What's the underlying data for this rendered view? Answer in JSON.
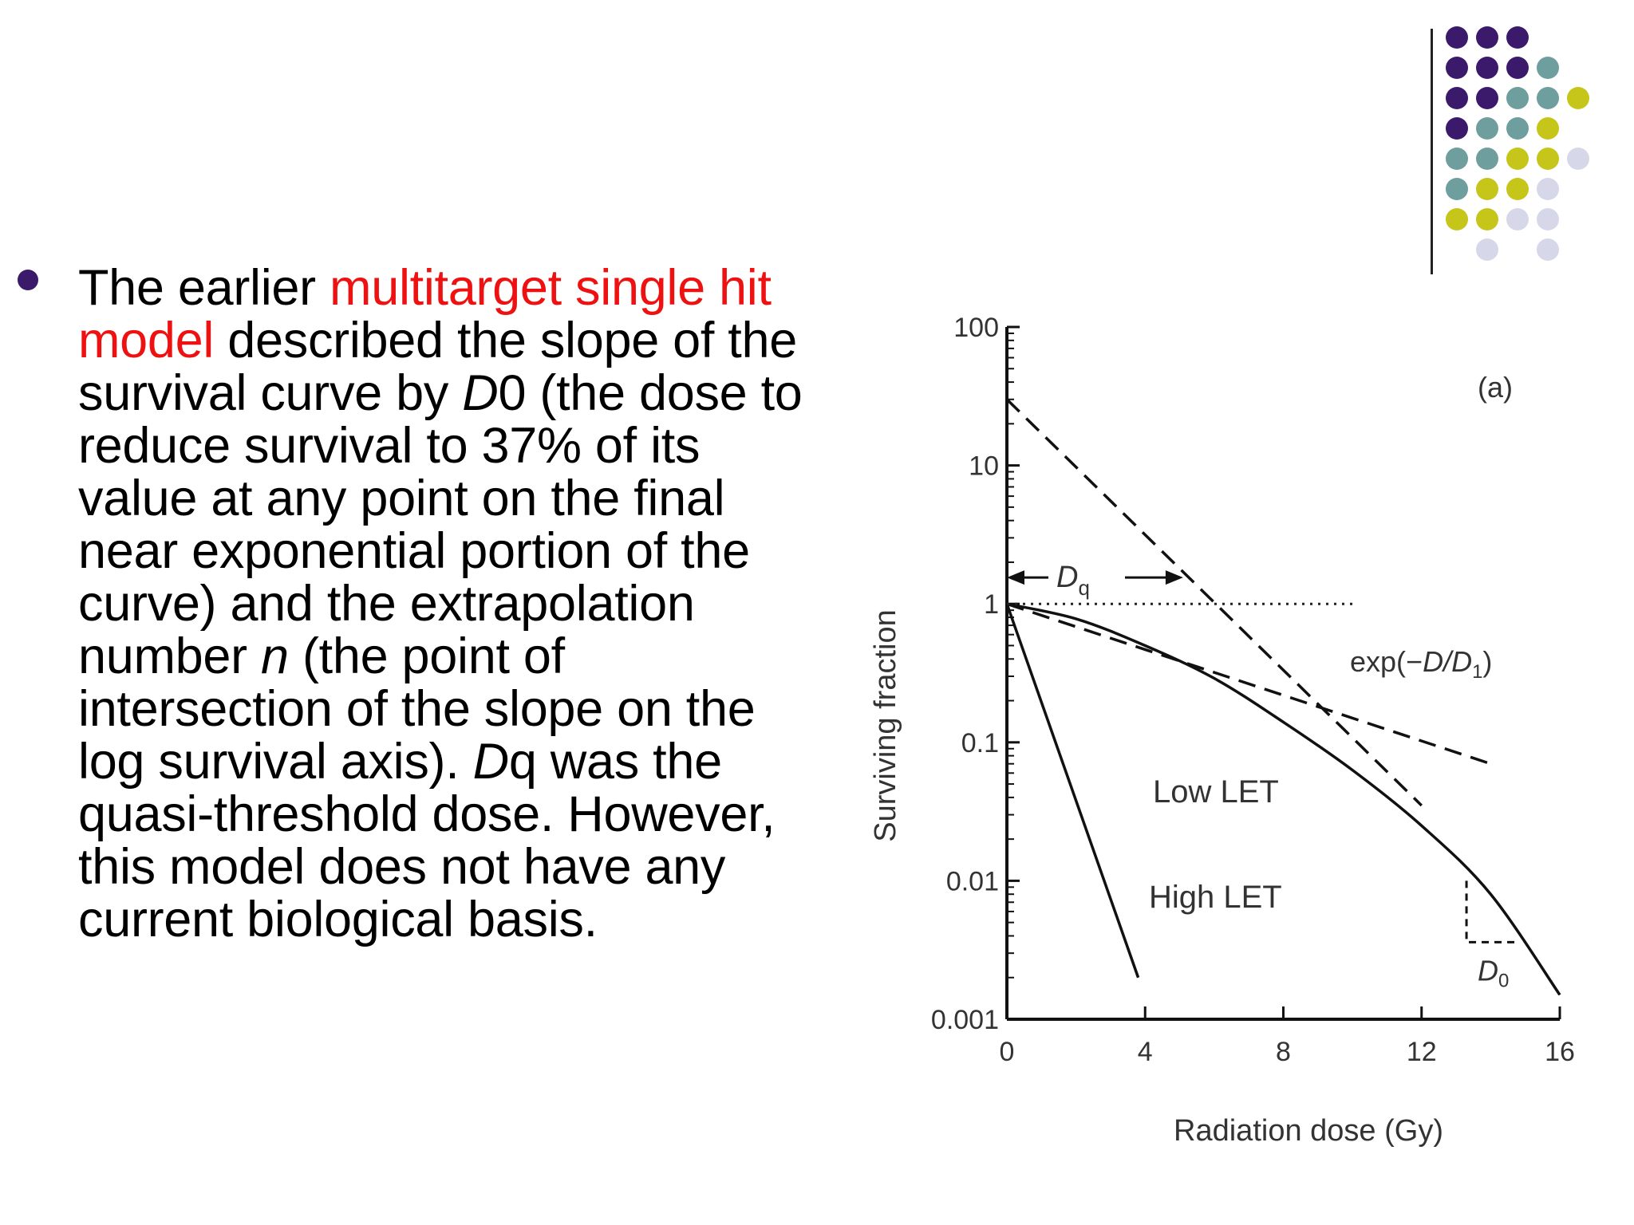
{
  "bullet": {
    "marker_color": "#3b1a6b",
    "segments": [
      {
        "text": "The earlier ",
        "style": "normal"
      },
      {
        "text": "multitarget single hit model",
        "style": "highlight"
      },
      {
        "text": " described the slope of the survival curve by ",
        "style": "normal"
      },
      {
        "text": "D",
        "style": "italic"
      },
      {
        "text": "0 (the dose to reduce survival to 37% of its value at any point on the final near exponential portion of the curve) and the extrapolation number ",
        "style": "normal"
      },
      {
        "text": "n",
        "style": "italic"
      },
      {
        "text": " (the point of intersection of the slope on the log survival axis). ",
        "style": "normal"
      },
      {
        "text": "D",
        "style": "italic"
      },
      {
        "text": "q was the quasi-threshold dose. However, this model does not have any current biological basis.",
        "style": "normal"
      }
    ],
    "highlight_color": "#ee1111"
  },
  "decoration": {
    "colors": {
      "purple": "#3b1a6b",
      "teal": "#6e9e9e",
      "lime": "#c6c61a",
      "lavender": "#d7d7ea"
    },
    "dot_rows": [
      [
        "purple",
        "purple",
        "purple",
        "",
        "",
        ""
      ],
      [
        "purple",
        "purple",
        "purple",
        "teal",
        "",
        ""
      ],
      [
        "purple",
        "purple",
        "teal",
        "teal",
        "lime",
        ""
      ],
      [
        "purple",
        "teal",
        "teal",
        "lime",
        "",
        ""
      ],
      [
        "teal",
        "teal",
        "lime",
        "lime",
        "lavender",
        ""
      ],
      [
        "teal",
        "lime",
        "lime",
        "lavender",
        "",
        ""
      ],
      [
        "lime",
        "lime",
        "lavender",
        "lavender",
        "",
        ""
      ],
      [
        "",
        "lavender",
        "",
        "lavender",
        "",
        ""
      ]
    ]
  },
  "chart_data": {
    "type": "line",
    "panel_label": "(a)",
    "xlabel": "Radiation dose (Gy)",
    "ylabel": "Surviving fraction",
    "xlim": [
      0,
      16
    ],
    "ylim": [
      0.001,
      100
    ],
    "yscale": "log",
    "x_ticks": [
      0,
      4,
      8,
      12,
      16
    ],
    "y_ticks": [
      0.001,
      0.01,
      0.1,
      1,
      10,
      100
    ],
    "x_tick_labels": [
      "0",
      "4",
      "8",
      "12",
      "16"
    ],
    "y_tick_labels": [
      "0.001",
      "0.01",
      "0.1",
      "1",
      "10",
      "100"
    ],
    "series": [
      {
        "name": "Low LET",
        "style": "solid",
        "x": [
          0,
          2,
          4,
          6,
          8,
          10,
          12,
          14,
          16
        ],
        "y": [
          1,
          0.78,
          0.5,
          0.29,
          0.14,
          0.063,
          0.025,
          0.008,
          0.0015
        ]
      },
      {
        "name": "High LET",
        "style": "solid",
        "x": [
          0,
          3.8
        ],
        "y": [
          1,
          0.002
        ]
      },
      {
        "name": "exp(−D/D1)",
        "style": "dashed",
        "x": [
          0,
          14
        ],
        "y": [
          1,
          0.07
        ]
      },
      {
        "name": "",
        "style": "dashed",
        "x": [
          0,
          12
        ],
        "y": [
          30,
          0.035
        ]
      }
    ],
    "annotations": {
      "low_let": "Low LET",
      "high_let": "High LET",
      "exp_label_prefix": "exp(−",
      "exp_label_d": "D/D",
      "exp_label_sub": "1",
      "exp_label_suffix": ")",
      "dq_label": "D",
      "dq_sub": "q",
      "dq_start_x": 0,
      "dq_end_x": 5.1,
      "dq_y": 1.55,
      "threshold_y": 1,
      "threshold_x_end": 10,
      "d0_label": "D",
      "d0_sub": "0",
      "d0_x1": 13.3,
      "d0_x2": 14.8,
      "d0_y_top": 0.01,
      "d0_y_bottom": 0.0036
    }
  }
}
